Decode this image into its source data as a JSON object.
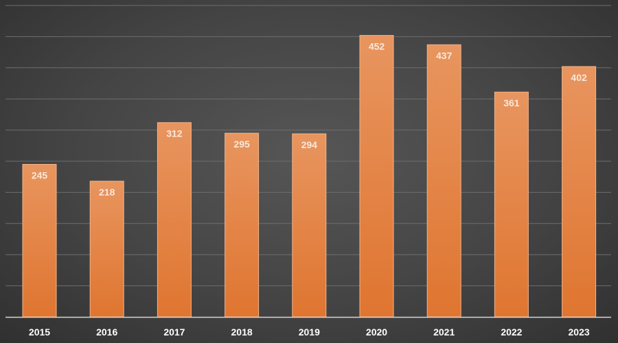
{
  "chart_data": {
    "type": "bar",
    "categories": [
      "2015",
      "2016",
      "2017",
      "2018",
      "2019",
      "2020",
      "2021",
      "2022",
      "2023"
    ],
    "values": [
      245,
      218,
      312,
      295,
      294,
      452,
      437,
      361,
      402
    ],
    "value_labels": [
      "245",
      "218",
      "312",
      "295",
      "294",
      "452",
      "437",
      "361",
      "402"
    ],
    "ylim": [
      0,
      500
    ],
    "grid": true,
    "legend": "none",
    "colors": {
      "bar_top": "#e8955f",
      "bar_bottom": "#df7530",
      "bar_edge": "#f3b48a",
      "grid": "#6e6e6e",
      "axis": "#d6d6d6",
      "data_label": "#f7e8dc",
      "tick_label": "#ffffff"
    }
  }
}
